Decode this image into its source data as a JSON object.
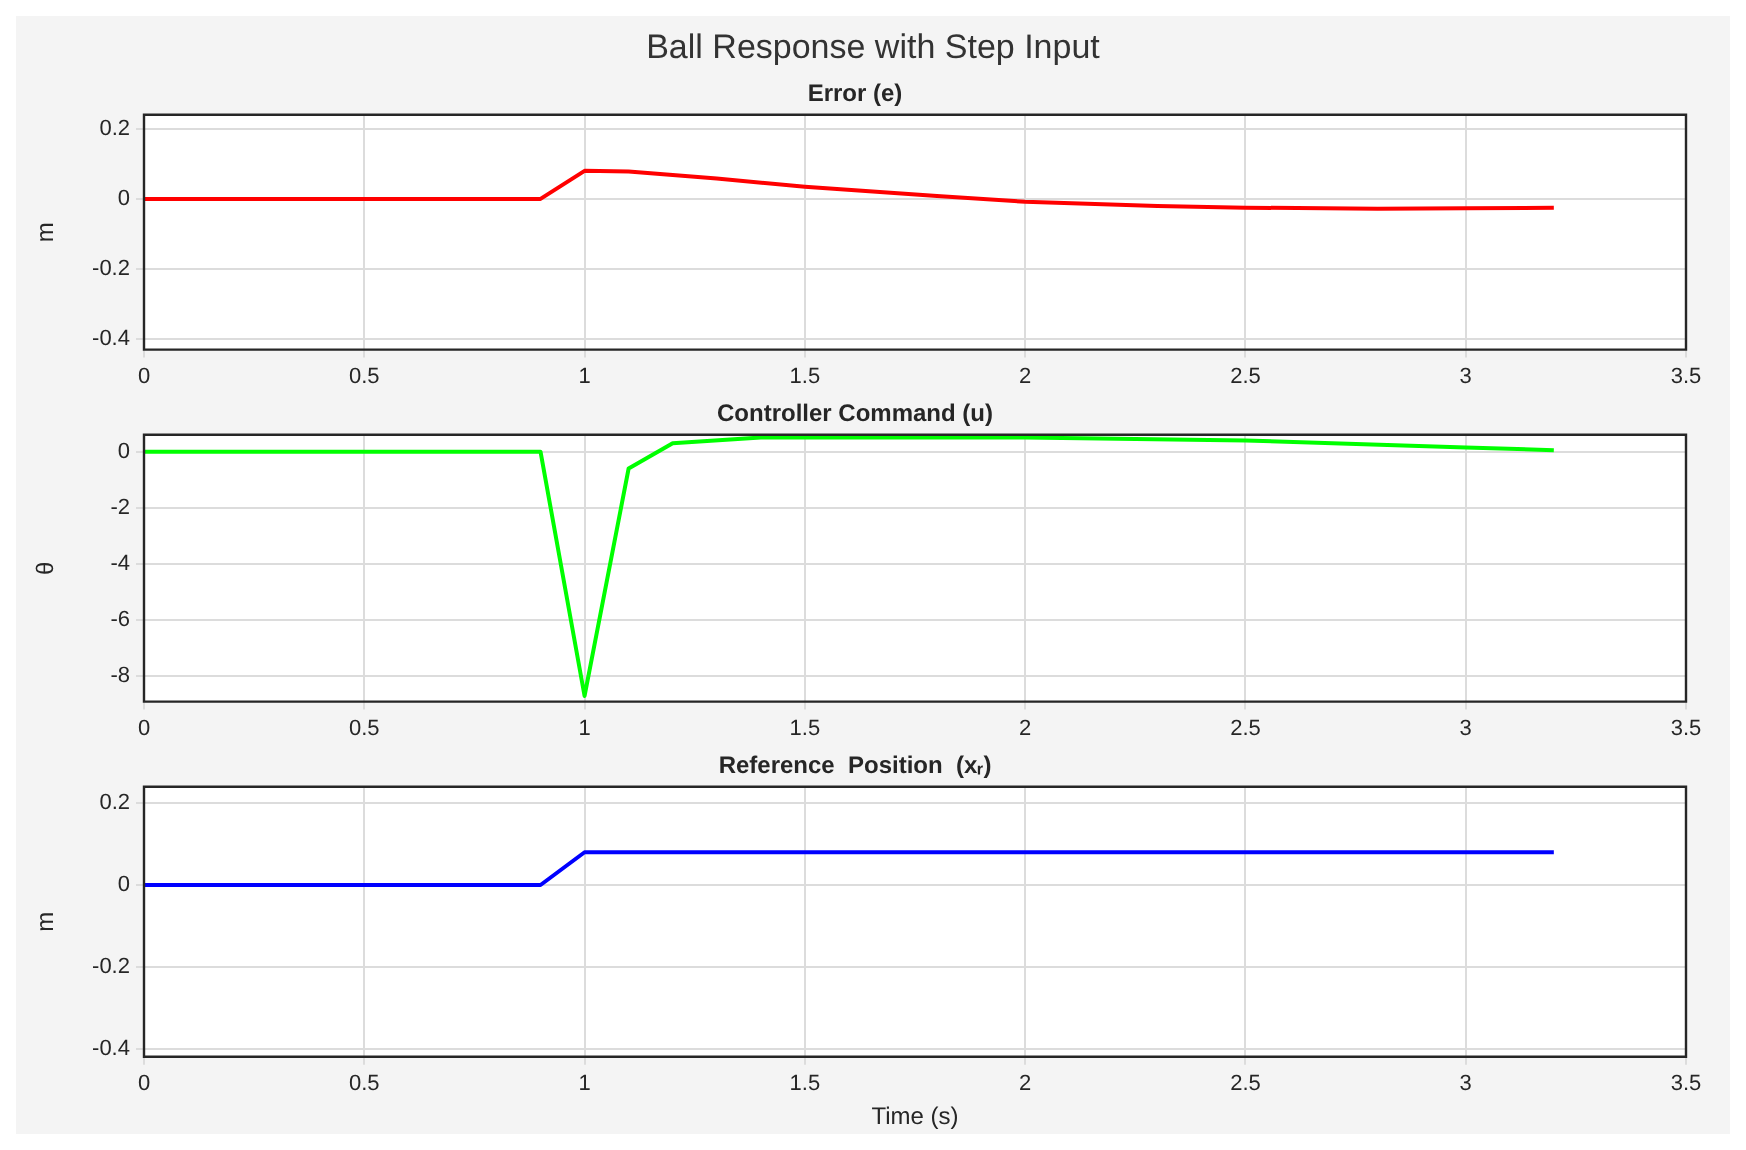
{
  "chart_data": [
    {
      "type": "line",
      "title": "Ball Response with Step Input",
      "subtitle": "Error (e)",
      "ylabel": "m",
      "xlim": [
        0,
        3.5
      ],
      "xticks": [
        0,
        0.5,
        1,
        1.5,
        2,
        2.5,
        3,
        3.5
      ],
      "ylim": [
        -0.43,
        0.24
      ],
      "yticks": [
        -0.4,
        -0.2,
        0,
        0.2
      ],
      "grid": true,
      "legend": false,
      "marker": "none",
      "line_style": "solid",
      "series": [
        {
          "color": "#ff0000",
          "x": [
            0,
            0.9,
            1.0,
            1.1,
            1.3,
            1.5,
            1.8,
            2.0,
            2.3,
            2.5,
            2.8,
            3.0,
            3.2
          ],
          "values": [
            0,
            0,
            0.08,
            0.078,
            0.058,
            0.035,
            0.008,
            -0.008,
            -0.02,
            -0.025,
            -0.028,
            -0.027,
            -0.025
          ]
        }
      ]
    },
    {
      "type": "line",
      "title": "Controller Command (u)",
      "ylabel": "θ",
      "xlim": [
        0,
        3.5
      ],
      "xticks": [
        0,
        0.5,
        1,
        1.5,
        2,
        2.5,
        3,
        3.5
      ],
      "ylim": [
        -8.9,
        0.6
      ],
      "yticks": [
        -8,
        -6,
        -4,
        -2,
        0
      ],
      "grid": true,
      "legend": false,
      "marker": "none",
      "line_style": "solid",
      "series": [
        {
          "color": "#00ff00",
          "x": [
            0,
            0.9,
            1.0,
            1.1,
            1.2,
            1.4,
            2.0,
            2.5,
            3.0,
            3.2
          ],
          "values": [
            0,
            0,
            -8.7,
            -0.6,
            0.3,
            0.5,
            0.5,
            0.4,
            0.15,
            0.05
          ]
        }
      ]
    },
    {
      "type": "line",
      "title": "Reference  Position  (xᵣ)",
      "xlabel": "Time (s)",
      "ylabel": "m",
      "xlim": [
        0,
        3.5
      ],
      "xticks": [
        0,
        0.5,
        1,
        1.5,
        2,
        2.5,
        3,
        3.5
      ],
      "ylim": [
        -0.42,
        0.24
      ],
      "yticks": [
        -0.4,
        -0.2,
        0,
        0.2
      ],
      "grid": true,
      "legend": false,
      "marker": "none",
      "line_style": "solid",
      "series": [
        {
          "color": "#0000ff",
          "x": [
            0,
            0.9,
            1.0,
            3.2
          ],
          "values": [
            0,
            0,
            0.08,
            0.08
          ]
        }
      ]
    }
  ]
}
